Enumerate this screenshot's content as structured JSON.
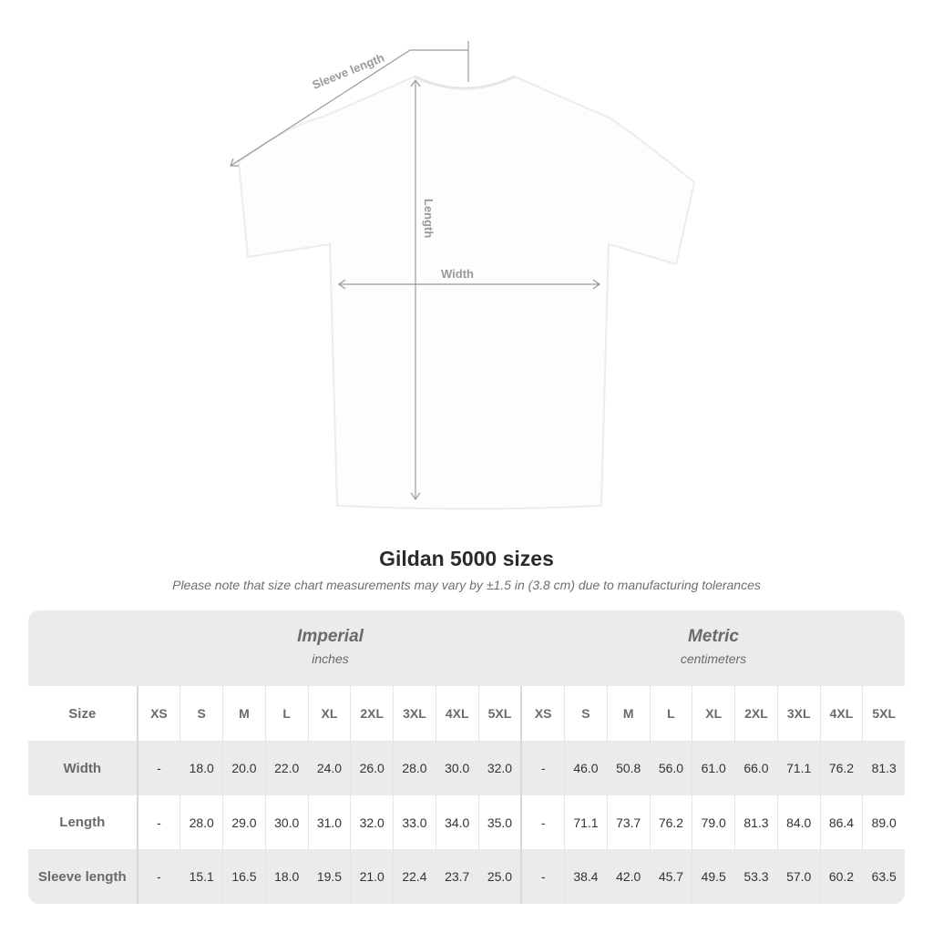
{
  "diagram": {
    "sleeve_label": "Sleeve length",
    "length_label": "Length",
    "width_label": "Width"
  },
  "title": "Gildan 5000 sizes",
  "note": "Please note that size chart measurements may vary by ±1.5 in (3.8 cm) due to manufacturing tolerances",
  "groups": [
    {
      "name": "Imperial",
      "unit": "inches"
    },
    {
      "name": "Metric",
      "unit": "centimeters"
    }
  ],
  "header_label": "Size",
  "sizes": [
    "XS",
    "S",
    "M",
    "L",
    "XL",
    "2XL",
    "3XL",
    "4XL",
    "5XL"
  ],
  "rows": [
    {
      "label": "Width",
      "imperial": [
        "-",
        "18.0",
        "20.0",
        "22.0",
        "24.0",
        "26.0",
        "28.0",
        "30.0",
        "32.0"
      ],
      "metric": [
        "-",
        "46.0",
        "50.8",
        "56.0",
        "61.0",
        "66.0",
        "71.1",
        "76.2",
        "81.3"
      ]
    },
    {
      "label": "Length",
      "imperial": [
        "-",
        "28.0",
        "29.0",
        "30.0",
        "31.0",
        "32.0",
        "33.0",
        "34.0",
        "35.0"
      ],
      "metric": [
        "-",
        "71.1",
        "73.7",
        "76.2",
        "79.0",
        "81.3",
        "84.0",
        "86.4",
        "89.0"
      ]
    },
    {
      "label": "Sleeve length",
      "imperial": [
        "-",
        "15.1",
        "16.5",
        "18.0",
        "19.5",
        "21.0",
        "22.4",
        "23.7",
        "25.0"
      ],
      "metric": [
        "-",
        "38.4",
        "42.0",
        "45.7",
        "49.5",
        "53.3",
        "57.0",
        "60.2",
        "63.5"
      ]
    }
  ],
  "colors": {
    "band": "#ebebeb",
    "label_text": "#6a6a6a",
    "measure_line": "#9a9a9a"
  }
}
